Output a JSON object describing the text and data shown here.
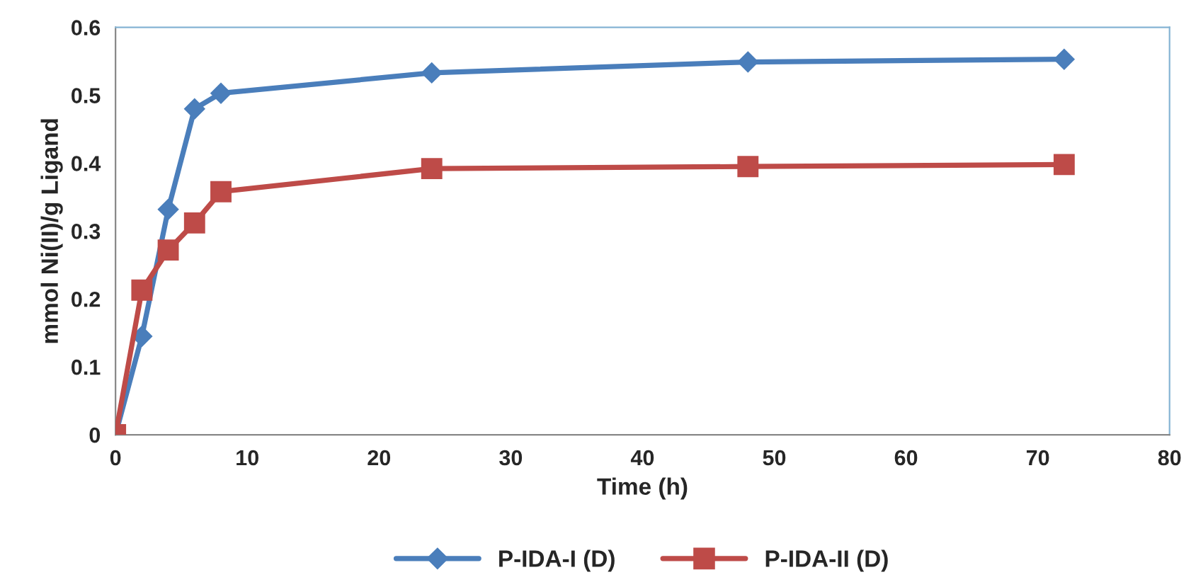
{
  "chart_data": {
    "type": "line",
    "xlabel": "Time (h)",
    "ylabel": "mmol Ni(II)/g Ligand",
    "x": [
      0,
      2,
      4,
      6,
      8,
      24,
      48,
      72
    ],
    "series": [
      {
        "name": "P-IDA-I (D)",
        "color": "#4a7ebb",
        "marker": "diamond",
        "values": [
          0,
          0.145,
          0.332,
          0.48,
          0.503,
          0.533,
          0.549,
          0.553
        ]
      },
      {
        "name": "P-IDA-II (D)",
        "color": "#be4b48",
        "marker": "square",
        "values": [
          0,
          0.213,
          0.272,
          0.312,
          0.358,
          0.392,
          0.395,
          0.398
        ]
      }
    ],
    "xlim": [
      0,
      80
    ],
    "xticks": [
      0,
      10,
      20,
      30,
      40,
      50,
      60,
      70,
      80
    ],
    "ylim": [
      0,
      0.6
    ],
    "yticks": [
      0,
      0.1,
      0.2,
      0.3,
      0.4,
      0.5,
      0.6
    ],
    "grid": false,
    "legend": "bottom",
    "line_style": "solid"
  }
}
